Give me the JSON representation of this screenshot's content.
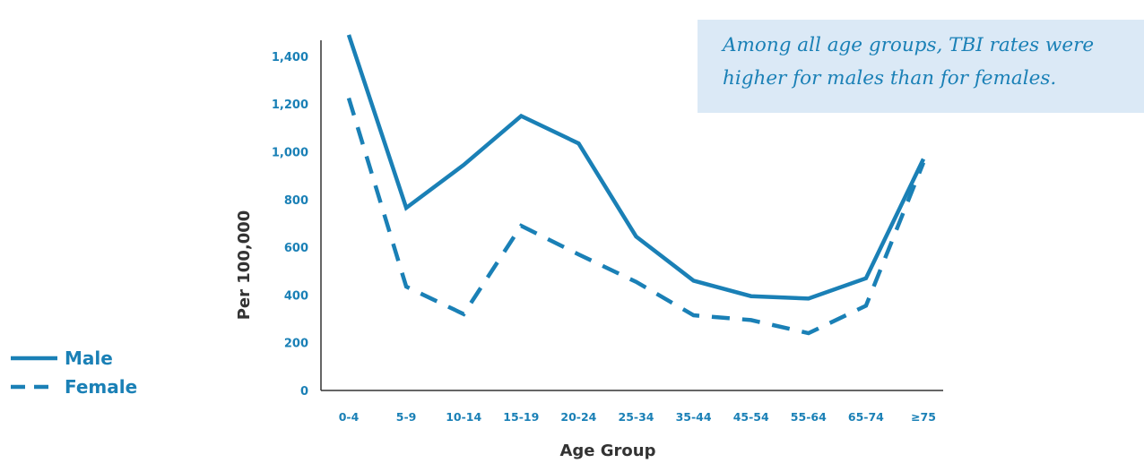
{
  "annotation": {
    "line1": "Among all age groups, TBI rates were",
    "line2": "higher for males than for females."
  },
  "chart_data": {
    "type": "line",
    "xlabel": "Age Group",
    "ylabel": "Per 100,000",
    "categories": [
      "0-4",
      "5-9",
      "10-14",
      "15-19",
      "20-24",
      "25-34",
      "35-44",
      "45-54",
      "55-64",
      "65-74",
      "≥75"
    ],
    "ylim": [
      0,
      1500
    ],
    "yticks": [
      0,
      200,
      400,
      600,
      800,
      1000,
      1200,
      1400
    ],
    "ytick_labels": [
      "0",
      "200",
      "400",
      "600",
      "800",
      "1,000",
      "1,200",
      "1,400"
    ],
    "grid": false,
    "legend_position": "bottom-left",
    "series": [
      {
        "name": "Male",
        "style": "solid",
        "color": "#1a80b6",
        "values": [
          1490,
          765,
          945,
          1150,
          1035,
          645,
          460,
          395,
          385,
          470,
          970
        ]
      },
      {
        "name": "Female",
        "style": "dashed",
        "color": "#1a80b6",
        "values": [
          1225,
          435,
          320,
          690,
          570,
          455,
          315,
          295,
          240,
          355,
          955
        ]
      }
    ]
  }
}
